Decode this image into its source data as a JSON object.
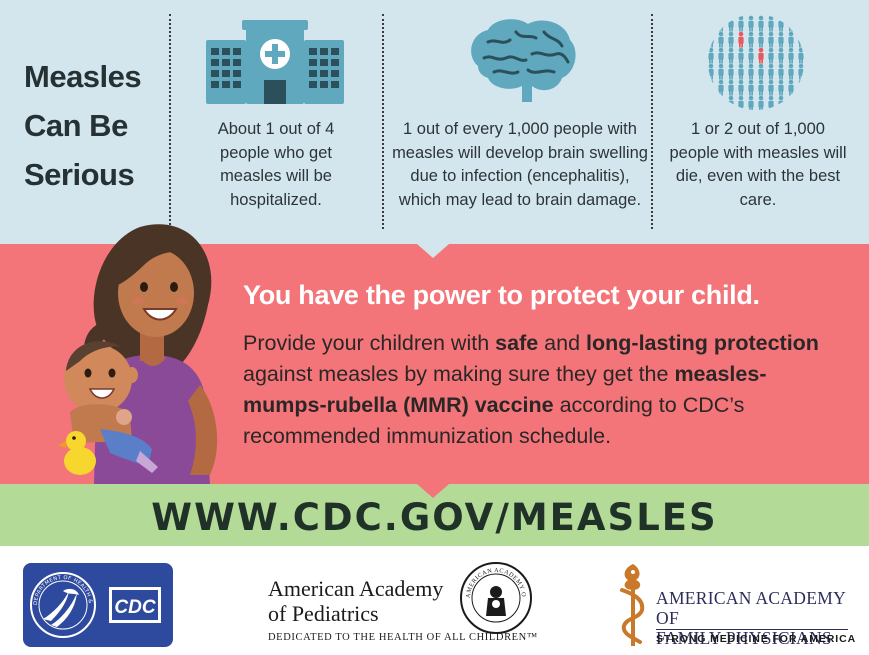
{
  "headline": "Measles Can Be Serious",
  "stats": [
    {
      "text": "About 1 out of 4 people who get measles will be hospitalized.",
      "icon": "hospital-icon"
    },
    {
      "text": "1 out of every 1,000 people with measles will develop brain swelling due to infection (encephalitis), which may lead to brain damage.",
      "icon": "brain-icon"
    },
    {
      "text": "1 or 2 out of 1,000 people with measles will die, even with the best care.",
      "icon": "people-crowd-icon"
    }
  ],
  "band": {
    "title": "You have the power to protect your child.",
    "p1": "Provide your children with ",
    "b1": "safe",
    "p2": " and ",
    "b2": "long-lasting protection",
    "p3": " against measles by making sure they get the ",
    "b3": "measles-mumps-rubella (MMR) vaccine",
    "p4": " according to CDC’s recommended immunization schedule."
  },
  "url": "WWW.CDC.GOV/MEASLES",
  "footer": {
    "hhs_cdc_logo_text": "CDC",
    "hhs_seal_text": "DEPARTMENT OF HEALTH & HUMAN SERVICES USA",
    "aap_name_line1": "American Academy",
    "aap_name_line2": "of Pediatrics",
    "aap_tagline": "DEDICATED TO THE HEALTH OF ALL CHILDREN™",
    "aap_seal_text": "AMERICAN ACADEMY OF PEDIATRICS",
    "aafp_name_line1": "AMERICAN ACADEMY OF",
    "aafp_name_line2": "FAMILY PHYSICIANS",
    "aafp_tagline": "STRONG MEDICINE FOR AMERICA"
  },
  "colors": {
    "top_bg": "#d3e6ee",
    "band_bg": "#f3757a",
    "green_bg": "#b4da98",
    "icon_teal": "#5fa8bd",
    "highlight_red": "#e8585c",
    "hhs_blue": "#2e4a9e"
  }
}
